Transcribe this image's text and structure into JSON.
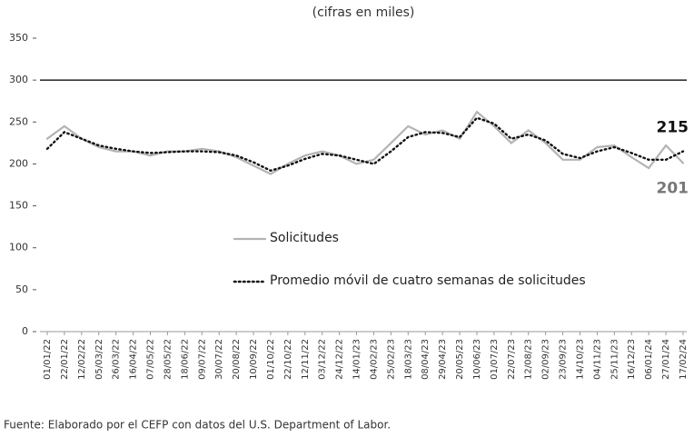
{
  "chart_data": {
    "type": "line",
    "subtitle": "(cifras en miles)",
    "source": "Fuente: Elaborado por el CEFP con datos del U.S. Department of Labor.",
    "categories": [
      "01/01/22",
      "22/01/22",
      "12/02/22",
      "05/03/22",
      "26/03/22",
      "16/04/22",
      "07/05/22",
      "28/05/22",
      "18/06/22",
      "09/07/22",
      "30/07/22",
      "20/08/22",
      "10/09/22",
      "01/10/22",
      "22/10/22",
      "12/11/22",
      "03/12/22",
      "24/12/22",
      "14/01/23",
      "04/02/23",
      "25/02/23",
      "18/03/23",
      "08/04/23",
      "29/04/23",
      "20/05/23",
      "10/06/23",
      "01/07/23",
      "22/07/23",
      "12/08/23",
      "02/09/23",
      "23/09/23",
      "14/10/23",
      "04/11/23",
      "25/11/23",
      "16/12/23",
      "06/01/24",
      "27/01/24",
      "17/02/24"
    ],
    "series": [
      {
        "name": "Solicitudes",
        "color": "#b3b3b3",
        "style": "solid",
        "values": [
          230,
          245,
          230,
          220,
          215,
          215,
          210,
          215,
          215,
          218,
          215,
          208,
          198,
          188,
          200,
          210,
          215,
          210,
          200,
          205,
          225,
          245,
          235,
          240,
          230,
          262,
          245,
          225,
          240,
          225,
          205,
          205,
          220,
          222,
          208,
          195,
          222,
          201
        ]
      },
      {
        "name": "Promedio móvil de cuatro semanas de solicitudes",
        "color": "#111111",
        "style": "dotted",
        "values": [
          218,
          238,
          230,
          222,
          218,
          215,
          213,
          214,
          215,
          215,
          214,
          210,
          202,
          192,
          198,
          206,
          212,
          210,
          205,
          200,
          215,
          232,
          238,
          237,
          232,
          255,
          248,
          230,
          235,
          228,
          212,
          207,
          215,
          220,
          213,
          205,
          205,
          215
        ]
      }
    ],
    "ylim": [
      0,
      350
    ],
    "yticks": [
      0,
      50,
      100,
      150,
      200,
      250,
      300,
      350
    ],
    "reference_line": 300
  }
}
